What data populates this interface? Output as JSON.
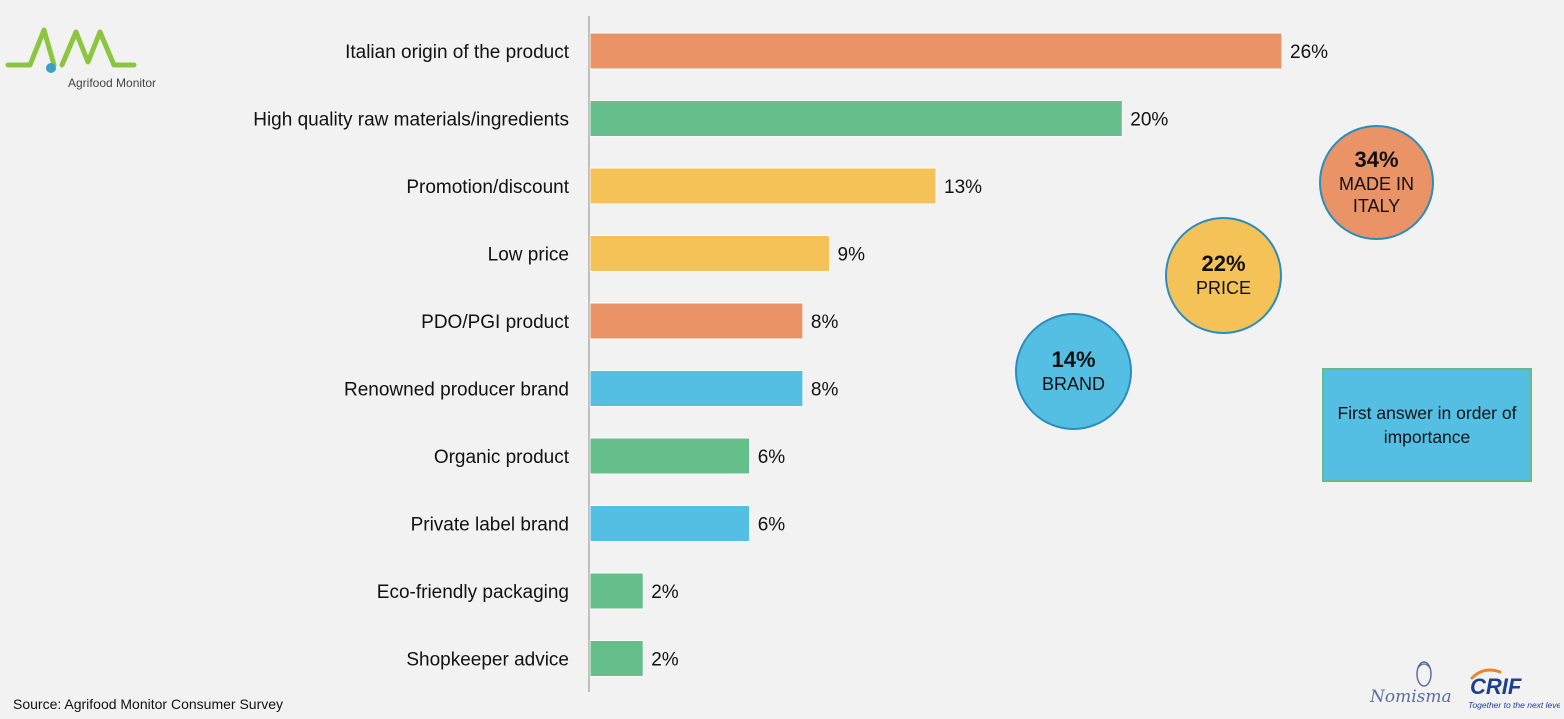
{
  "chart_data": {
    "type": "bar",
    "orientation": "horizontal",
    "categories": [
      "Italian origin of the product",
      "High quality raw materials/ingredients",
      "Promotion/discount",
      "Low price",
      "PDO/PGI product",
      "Renowned producer brand",
      "Organic product",
      "Private label brand",
      "Eco-friendly packaging",
      "Shopkeeper advice"
    ],
    "values": [
      26,
      20,
      13,
      9,
      8,
      8,
      6,
      6,
      2,
      2
    ],
    "value_labels": [
      "26%",
      "20%",
      "13%",
      "9%",
      "8%",
      "8%",
      "6%",
      "6%",
      "2%",
      "2%"
    ],
    "bar_colors": [
      "#e99366",
      "#66bf8a",
      "#f4c257",
      "#f4c257",
      "#e99366",
      "#54bfe3",
      "#66bf8a",
      "#54bfe3",
      "#66bf8a",
      "#66bf8a"
    ],
    "xlim": [
      0,
      26
    ],
    "grid": false,
    "title": "",
    "xlabel": "",
    "ylabel": ""
  },
  "groups": [
    {
      "pct": "34%",
      "label": "MADE IN ITALY",
      "color": "#e99366"
    },
    {
      "pct": "22%",
      "label": "PRICE",
      "color": "#f4c257"
    },
    {
      "pct": "14%",
      "label": "BRAND",
      "color": "#54bfe3"
    }
  ],
  "note": "First answer in order of importance",
  "source": "Source:  Agrifood Monitor Consumer Survey",
  "logos": {
    "agrifood": "Agrifood Monitor",
    "nomisma": "Nomisma",
    "crif": "CRIF",
    "crif_tagline": "Together to the next level"
  },
  "colors": {
    "background": "#f2f2f2",
    "made_in_italy": "#e99366",
    "quality": "#66bf8a",
    "price": "#f4c257",
    "brand": "#54bfe3",
    "logo_green": "#8cc63f",
    "logo_blue": "#3aa0c8"
  }
}
